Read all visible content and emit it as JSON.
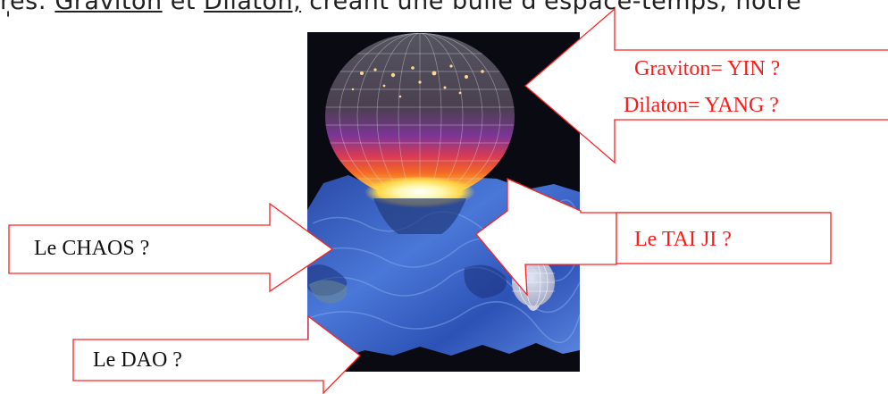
{
  "top_line": {
    "prefix": "res: ",
    "graviton": "Graviton",
    "middle": " et ",
    "dilaton": "Dilaton,",
    "suffix": " créant une bulle d'espace-temps, notre"
  },
  "quote_mark": "'",
  "labels": {
    "graviton": "Graviton= YIN ?",
    "dilaton": "Dilaton= YANG ?",
    "taiji": "Le TAI JI ?",
    "chaos": "Le CHAOS ?",
    "dao": "Le DAO ?"
  },
  "colors": {
    "callout_stroke": "#ff2020",
    "label_red": "#ff1a1a",
    "label_black": "#111111",
    "image_background": "#0a0a12",
    "membrane_blue": "#3a63c9"
  }
}
